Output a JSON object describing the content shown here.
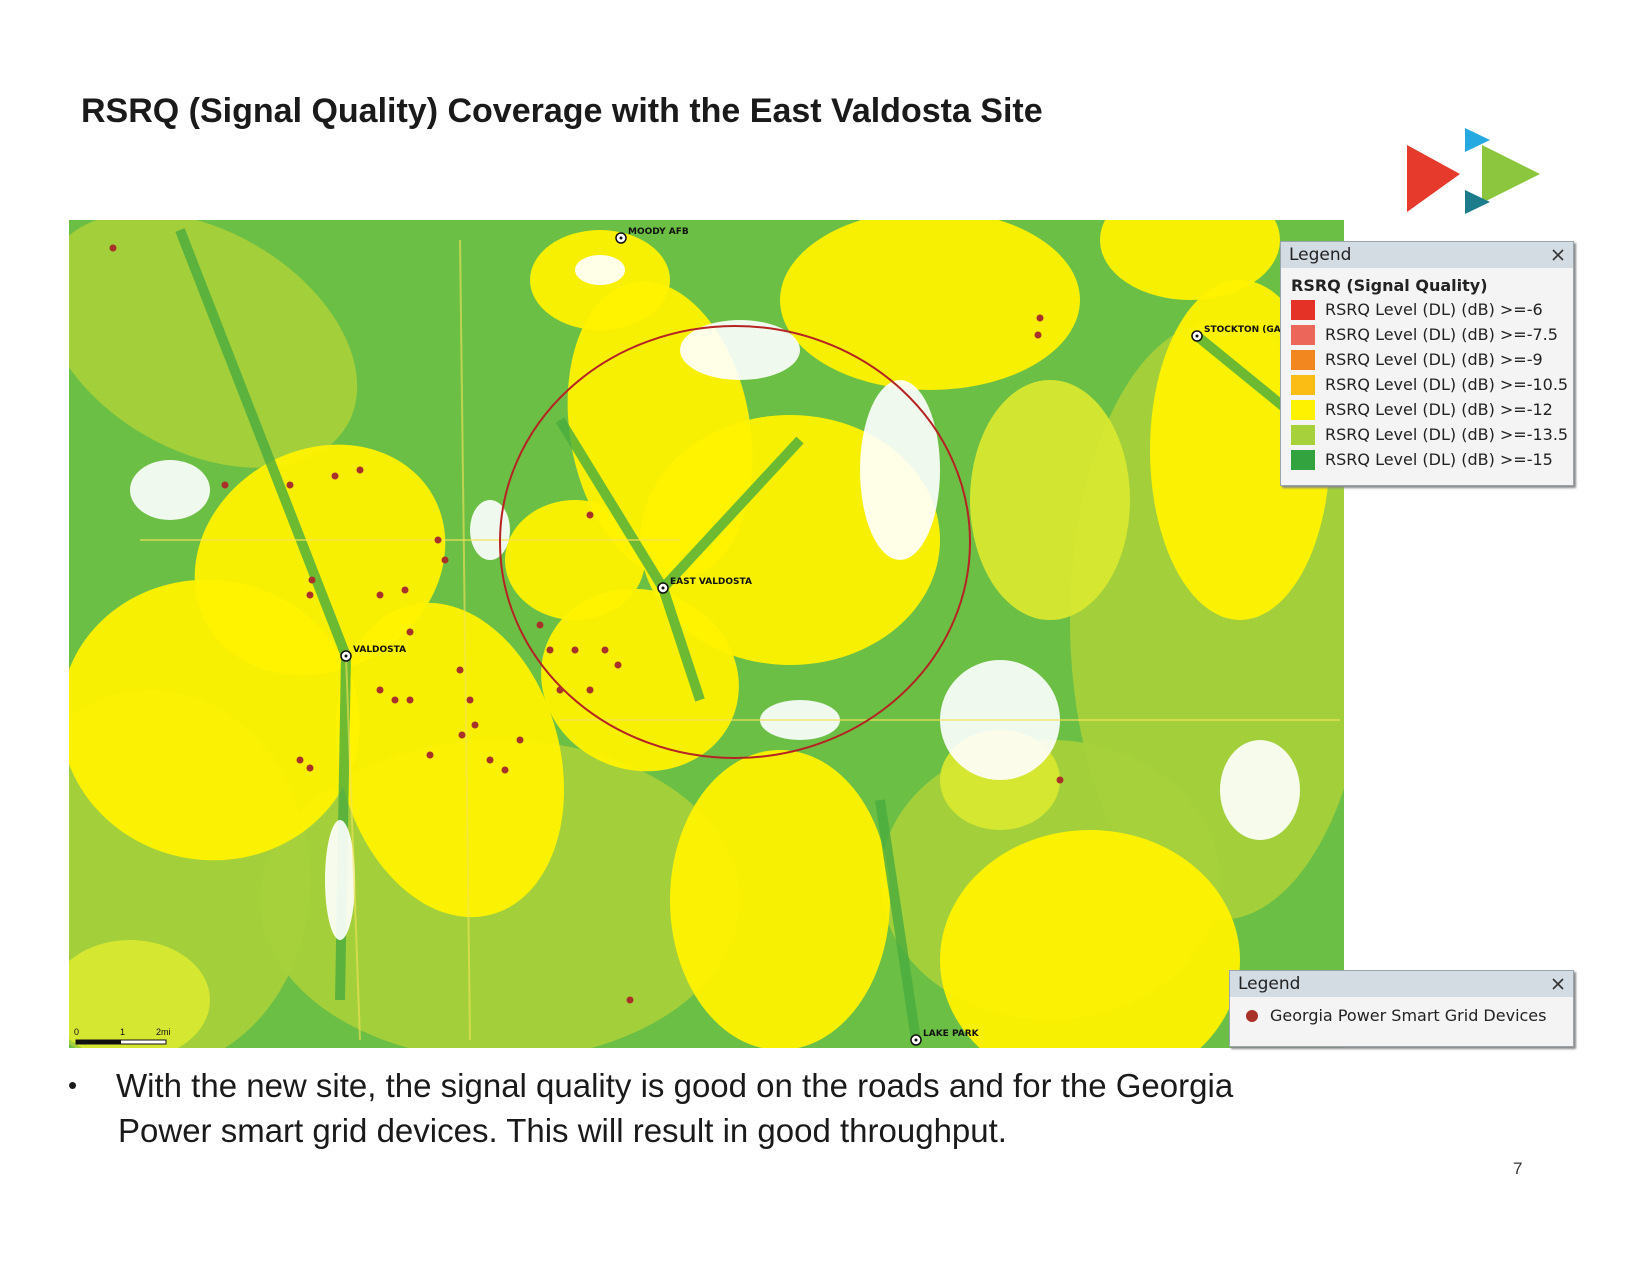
{
  "title": "RSRQ (Signal Quality) Coverage with the East Valdosta Site",
  "map": {
    "sites": [
      "MOODY AFB",
      "EAST VALDOSTA",
      "VALDOSTA",
      "STOCKTON (GA",
      "LAKE PARK"
    ],
    "scale_labels": [
      "0",
      "1",
      "2mi"
    ]
  },
  "legend_rsrq": {
    "title": "Legend",
    "heading": "RSRQ (Signal Quality)",
    "items": [
      {
        "label": "RSRQ Level (DL) (dB) >=-6",
        "color": "#e53227"
      },
      {
        "label": "RSRQ Level (DL) (dB) >=-7.5",
        "color": "#ec675a"
      },
      {
        "label": "RSRQ Level (DL) (dB) >=-9",
        "color": "#f3871f"
      },
      {
        "label": "RSRQ Level (DL) (dB) >=-10.5",
        "color": "#fbbd13"
      },
      {
        "label": "RSRQ Level (DL) (dB) >=-12",
        "color": "#fff200"
      },
      {
        "label": "RSRQ Level (DL) (dB) >=-13.5",
        "color": "#a6d13a"
      },
      {
        "label": "RSRQ Level (DL) (dB) >=-15",
        "color": "#33a33f"
      }
    ]
  },
  "legend_devices": {
    "title": "Legend",
    "items": [
      {
        "label": "Georgia Power Smart Grid Devices",
        "color": "#a8322a"
      }
    ]
  },
  "bullets": [
    "With the new site, the signal quality is good on the roads and for the Georgia Power smart grid devices. This will result in good throughput."
  ],
  "page_number": "7"
}
